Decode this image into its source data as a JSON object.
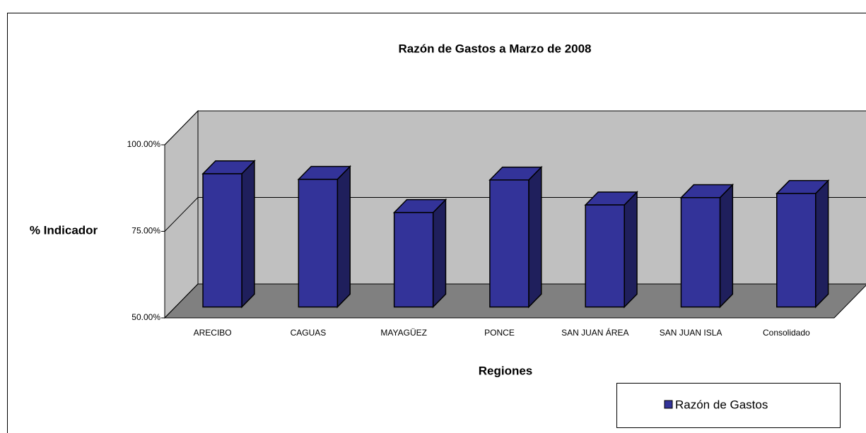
{
  "chart_data": {
    "type": "bar3d",
    "title": "Razón de Gastos a Marzo de 2008",
    "x_label": "Regiones",
    "y_label": "% Indicador",
    "categories": [
      "ARECIBO",
      "CAGUAS",
      "MAYAGÜEZ",
      "PONCE",
      "SAN JUAN ÁREA",
      "SAN JUAN ISLA",
      "Consolidado"
    ],
    "series": [
      {
        "name": "Razón de Gastos",
        "color": "#333399",
        "values": [
          88.5,
          86.9,
          77.3,
          86.7,
          79.5,
          81.6,
          82.8
        ]
      }
    ],
    "ylim": [
      50,
      100
    ],
    "yticks": [
      {
        "value": 50,
        "label": "50.00%"
      },
      {
        "value": 75,
        "label": "75.00%"
      },
      {
        "value": 100,
        "label": "100.00%"
      }
    ],
    "grid": true,
    "legend": "bottom-right"
  }
}
